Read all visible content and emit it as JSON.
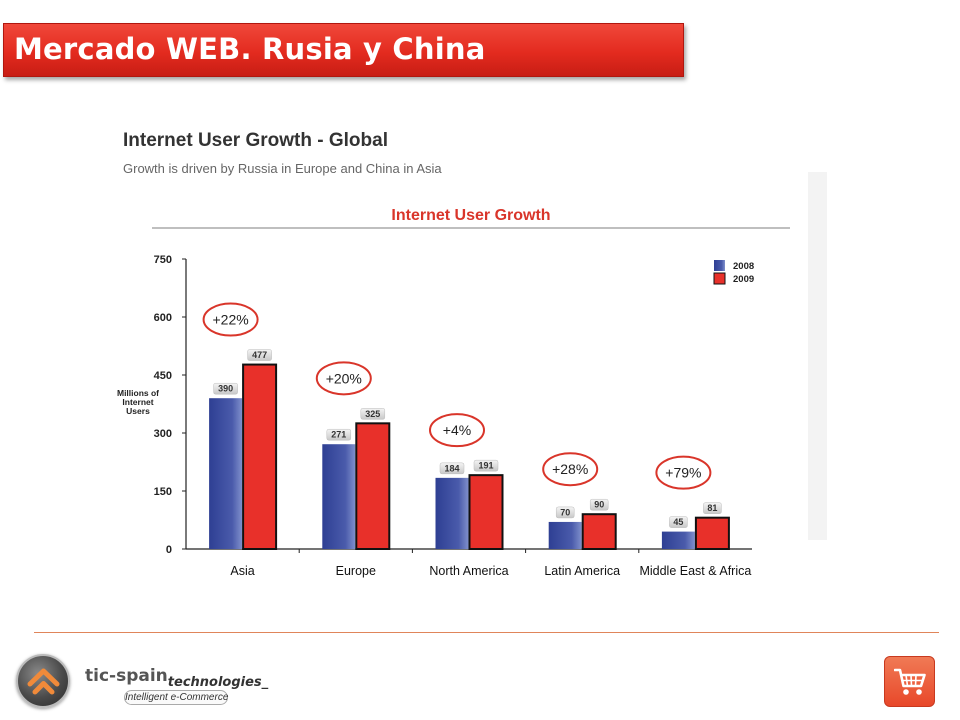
{
  "slide": {
    "title": "Mercado WEB. Rusia y China"
  },
  "header": {
    "title": "Internet User Growth - Global",
    "subtitle": "Growth is driven by Russia in Europe and China in Asia"
  },
  "chart_data": {
    "type": "bar",
    "title": "Internet User Growth",
    "ylabel": "Millions of Internet Users",
    "xlabel": "",
    "ylim": [
      0,
      750
    ],
    "yticks": [
      0,
      150,
      300,
      450,
      600,
      750
    ],
    "categories": [
      "Asia",
      "Europe",
      "North America",
      "Latin America",
      "Middle East & Africa"
    ],
    "series": [
      {
        "name": "2008",
        "color": "#3d4f9f",
        "values": [
          390,
          271,
          184,
          70,
          45
        ]
      },
      {
        "name": "2009",
        "color": "#e8302a",
        "values": [
          477,
          325,
          191,
          90,
          81
        ]
      }
    ],
    "growth_labels": [
      "+22%",
      "+20%",
      "+4%",
      "+28%",
      "+79%"
    ],
    "legend": "top-right",
    "grid": false
  },
  "colors": {
    "accent": "#e32b1f",
    "series_2008": "#3d4f9f",
    "series_2009": "#e8302a",
    "growth_circle": "#d9352a"
  },
  "footer": {
    "brand_name": "tic-spain",
    "brand_suffix": "technologies_",
    "tagline": "Intelligent e-Commerce",
    "logo_icon": "house-arrow-icon",
    "cart_icon": "shopping-cart-icon"
  }
}
